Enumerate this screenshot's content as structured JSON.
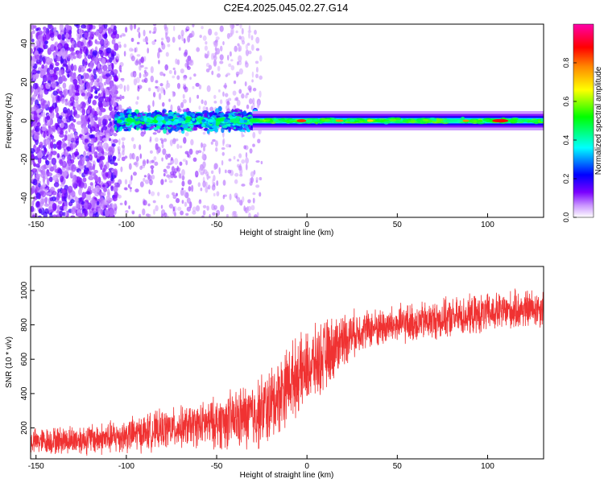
{
  "title": "C2E4.2025.045.02.27.G14",
  "chart_data": [
    {
      "type": "heatmap",
      "xlabel": "Height of straight line (km)",
      "ylabel": "Frequency (Hz)",
      "xlim": [
        -153,
        131
      ],
      "ylim": [
        -50,
        50
      ],
      "xticks": [
        -150,
        -100,
        -50,
        0,
        50,
        100
      ],
      "yticks": [
        -40,
        -20,
        0,
        20,
        40
      ],
      "colorbar": {
        "label": "Normalized spectral amplitude",
        "range": [
          0,
          1
        ],
        "ticks": [
          "0.0",
          "0.2",
          "0.4",
          "0.6",
          "0.8"
        ],
        "tick_values": [
          0.0,
          0.2,
          0.4,
          0.6,
          0.8
        ],
        "colors": [
          "#ffffff",
          "#cc99ff",
          "#7a00ff",
          "#0000ff",
          "#00ffff",
          "#00ff00",
          "#ffff00",
          "#ff8800",
          "#ff0000",
          "#ff00aa"
        ]
      },
      "description_regions": [
        {
          "x_range": [
            -153,
            -105
          ],
          "f_range": [
            -50,
            50
          ],
          "level": 0.15,
          "pattern": "scattered"
        },
        {
          "x_range": [
            -105,
            -30
          ],
          "f_range": [
            -8,
            8
          ],
          "level": 0.4,
          "pattern": "broadband-core"
        },
        {
          "x_range": [
            -30,
            131
          ],
          "f_range": [
            -3,
            3
          ],
          "level": 0.55,
          "pattern": "narrow-carrier"
        }
      ]
    },
    {
      "type": "line",
      "xlabel": "Height of straight line (km)",
      "ylabel": "SNR (10 * v/v)",
      "xlim": [
        -153,
        131
      ],
      "ylim": [
        20,
        1140
      ],
      "xticks": [
        -150,
        -100,
        -50,
        0,
        50,
        100
      ],
      "yticks": [
        200,
        400,
        600,
        800,
        1000
      ],
      "color": "#f03232",
      "trend": [
        {
          "x": -153,
          "y": 120
        },
        {
          "x": -110,
          "y": 140
        },
        {
          "x": -80,
          "y": 190
        },
        {
          "x": -50,
          "y": 230
        },
        {
          "x": -30,
          "y": 270
        },
        {
          "x": -20,
          "y": 330
        },
        {
          "x": -10,
          "y": 470
        },
        {
          "x": 0,
          "y": 540
        },
        {
          "x": 10,
          "y": 620
        },
        {
          "x": 20,
          "y": 720
        },
        {
          "x": 30,
          "y": 770
        },
        {
          "x": 50,
          "y": 800
        },
        {
          "x": 80,
          "y": 840
        },
        {
          "x": 110,
          "y": 880
        },
        {
          "x": 131,
          "y": 900
        }
      ],
      "noise_amplitude": [
        {
          "x": -153,
          "a": 70
        },
        {
          "x": -60,
          "a": 120
        },
        {
          "x": -20,
          "a": 220
        },
        {
          "x": 10,
          "a": 200
        },
        {
          "x": 30,
          "a": 110
        },
        {
          "x": 131,
          "a": 110
        }
      ]
    }
  ]
}
